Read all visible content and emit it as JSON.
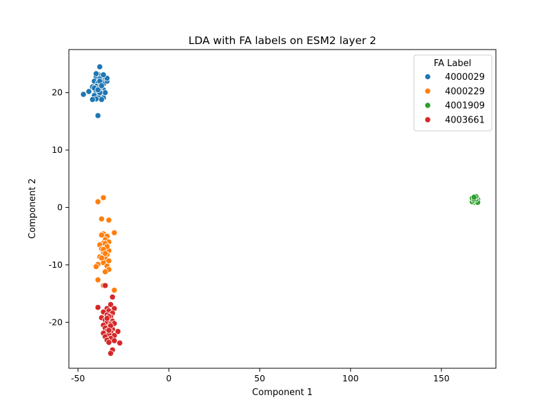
{
  "chart_data": {
    "type": "scatter",
    "title": "LDA with FA labels on ESM2 layer 2",
    "xlabel": "Component 1",
    "ylabel": "Component 2",
    "xlim": [
      -55,
      180
    ],
    "ylim": [
      -28,
      27.5
    ],
    "xticks": [
      -50,
      0,
      50,
      100,
      150
    ],
    "yticks": [
      -20,
      -10,
      0,
      10,
      20
    ],
    "grid": false,
    "legend": {
      "title": "FA Label",
      "placement": "top-right"
    },
    "series": [
      {
        "name": "4000029",
        "color": "#1f77b4",
        "points": [
          [
            -38,
            24.5
          ],
          [
            -39,
            23.2
          ],
          [
            -37,
            23.0
          ],
          [
            -40,
            22.8
          ],
          [
            -36,
            22.6
          ],
          [
            -38,
            22.4
          ],
          [
            -35,
            22.2
          ],
          [
            -41,
            22.0
          ],
          [
            -37,
            21.9
          ],
          [
            -39,
            21.7
          ],
          [
            -36,
            21.5
          ],
          [
            -38,
            21.3
          ],
          [
            -40,
            21.1
          ],
          [
            -37,
            20.9
          ],
          [
            -39,
            20.7
          ],
          [
            -36,
            20.5
          ],
          [
            -38,
            20.3
          ],
          [
            -40,
            20.1
          ],
          [
            -37,
            19.9
          ],
          [
            -39,
            19.7
          ],
          [
            -41,
            19.5
          ],
          [
            -38,
            19.3
          ],
          [
            -36,
            19.1
          ],
          [
            -40,
            18.9
          ],
          [
            -37,
            18.8
          ],
          [
            -34,
            22.0
          ],
          [
            -34,
            22.5
          ],
          [
            -42,
            21.0
          ],
          [
            -35,
            20.0
          ],
          [
            -41,
            20.8
          ],
          [
            -44,
            20.2
          ],
          [
            -47,
            19.7
          ],
          [
            -39,
            16.0
          ],
          [
            -38,
            20.0
          ],
          [
            -38,
            22.0
          ],
          [
            -39,
            20.5
          ],
          [
            -36,
            23.1
          ],
          [
            -40,
            23.3
          ],
          [
            -42,
            18.8
          ],
          [
            -37,
            21.2
          ]
        ]
      },
      {
        "name": "4000229",
        "color": "#ff7f0e",
        "points": [
          [
            -39,
            1.0
          ],
          [
            -36,
            1.7
          ],
          [
            -37,
            -2.0
          ],
          [
            -33,
            -2.2
          ],
          [
            -30,
            -4.4
          ],
          [
            -36,
            -4.6
          ],
          [
            -34,
            -5.0
          ],
          [
            -37,
            -4.8
          ],
          [
            -35,
            -5.6
          ],
          [
            -33,
            -6.0
          ],
          [
            -36,
            -6.2
          ],
          [
            -38,
            -6.5
          ],
          [
            -34,
            -6.7
          ],
          [
            -35,
            -7.0
          ],
          [
            -37,
            -7.2
          ],
          [
            -33,
            -7.5
          ],
          [
            -36,
            -7.8
          ],
          [
            -34,
            -8.2
          ],
          [
            -38,
            -8.6
          ],
          [
            -35,
            -8.9
          ],
          [
            -33,
            -9.3
          ],
          [
            -36,
            -9.6
          ],
          [
            -39,
            -9.9
          ],
          [
            -34,
            -10.2
          ],
          [
            -40,
            -10.3
          ],
          [
            -33,
            -10.8
          ],
          [
            -35,
            -11.2
          ],
          [
            -39,
            -12.6
          ],
          [
            -30,
            -14.4
          ],
          [
            -36,
            -13.6
          ],
          [
            -35,
            -6.3
          ],
          [
            -34,
            -6.8
          ],
          [
            -36,
            -7.3
          ],
          [
            -35,
            -8.0
          ],
          [
            -37,
            -8.8
          ]
        ]
      },
      {
        "name": "4001909",
        "color": "#2ca02c",
        "points": [
          [
            167,
            1.3
          ],
          [
            168,
            1.6
          ],
          [
            169,
            1.1
          ],
          [
            168,
            0.9
          ],
          [
            170,
            1.4
          ],
          [
            167,
            1.0
          ],
          [
            169,
            1.7
          ],
          [
            168,
            1.2
          ],
          [
            170,
            0.9
          ],
          [
            169,
            1.4
          ],
          [
            167,
            1.6
          ],
          [
            168,
            1.5
          ],
          [
            169,
            1.9
          ],
          [
            168,
            1.8
          ]
        ]
      },
      {
        "name": "4003661",
        "color": "#d62728",
        "points": [
          [
            -35,
            -13.6
          ],
          [
            -31,
            -15.6
          ],
          [
            -39,
            -17.4
          ],
          [
            -32,
            -16.9
          ],
          [
            -34,
            -17.6
          ],
          [
            -30,
            -17.6
          ],
          [
            -33,
            -18.0
          ],
          [
            -36,
            -18.2
          ],
          [
            -31,
            -18.4
          ],
          [
            -34,
            -18.7
          ],
          [
            -32,
            -19.0
          ],
          [
            -37,
            -19.2
          ],
          [
            -33,
            -19.4
          ],
          [
            -35,
            -19.6
          ],
          [
            -31,
            -19.8
          ],
          [
            -34,
            -20.0
          ],
          [
            -32,
            -20.3
          ],
          [
            -36,
            -20.5
          ],
          [
            -30,
            -20.2
          ],
          [
            -33,
            -20.8
          ],
          [
            -35,
            -21.0
          ],
          [
            -31,
            -21.2
          ],
          [
            -34,
            -21.5
          ],
          [
            -32,
            -21.7
          ],
          [
            -28,
            -21.6
          ],
          [
            -36,
            -21.9
          ],
          [
            -33,
            -22.1
          ],
          [
            -30,
            -22.3
          ],
          [
            -35,
            -22.5
          ],
          [
            -32,
            -22.8
          ],
          [
            -34,
            -23.1
          ],
          [
            -30,
            -23.2
          ],
          [
            -27,
            -23.6
          ],
          [
            -33,
            -23.5
          ],
          [
            -31,
            -24.8
          ],
          [
            -32,
            -25.4
          ],
          [
            -33,
            -19.0
          ],
          [
            -34,
            -19.3
          ],
          [
            -32,
            -20.6
          ],
          [
            -33,
            -21.4
          ]
        ]
      }
    ]
  }
}
